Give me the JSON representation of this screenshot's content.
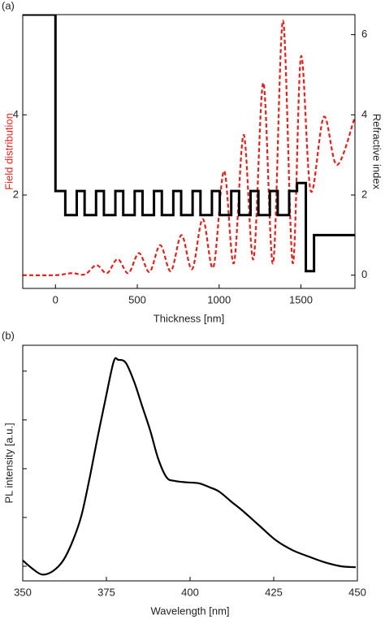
{
  "chart_data": [
    {
      "type": "line",
      "panel": "(a)",
      "xlabel": "Thickness [nm]",
      "ylabel": "Field distribution",
      "y2label": "Refractive index",
      "xlim": [
        -200,
        1830
      ],
      "xticks": [
        0,
        500,
        1000,
        1500
      ],
      "ylim": [
        -0.33,
        6.5
      ],
      "yticks": [
        2,
        4
      ],
      "y2lim": [
        -0.33,
        6.5
      ],
      "y2ticks": [
        0,
        2,
        4,
        6
      ],
      "ylabel_color": "#e3211c",
      "series": [
        {
          "color": "#e3211c",
          "dashed": true,
          "axis": "y",
          "x": [
            -200,
            0,
            100,
            180,
            250,
            315,
            380,
            445,
            510,
            575,
            640,
            705,
            770,
            835,
            900,
            965,
            1030,
            1090,
            1150,
            1210,
            1270,
            1330,
            1390,
            1450,
            1500,
            1560,
            1640,
            1720,
            1830
          ],
          "values": [
            0,
            0,
            0.05,
            0.02,
            0.25,
            0.05,
            0.4,
            0.05,
            0.55,
            0.08,
            0.75,
            0.1,
            1.0,
            0.15,
            1.4,
            0.2,
            2.6,
            0.3,
            3.5,
            0.4,
            4.8,
            0.3,
            6.35,
            0.3,
            5.45,
            2.1,
            3.95,
            2.75,
            3.95
          ]
        },
        {
          "color": "#000000",
          "dashed": false,
          "step": true,
          "axis": "y2",
          "x": [
            -200,
            0,
            0,
            60,
            60,
            130,
            130,
            178,
            178,
            248,
            248,
            296,
            296,
            366,
            366,
            414,
            414,
            484,
            484,
            532,
            532,
            602,
            602,
            650,
            650,
            720,
            720,
            768,
            768,
            838,
            838,
            886,
            886,
            956,
            956,
            1004,
            1004,
            1074,
            1074,
            1122,
            1122,
            1192,
            1192,
            1240,
            1240,
            1310,
            1310,
            1358,
            1358,
            1428,
            1428,
            1476,
            1476,
            1530,
            1530,
            1580,
            1580,
            1830
          ],
          "values": [
            6.5,
            6.5,
            2.1,
            2.1,
            1.5,
            1.5,
            2.1,
            2.1,
            1.5,
            1.5,
            2.1,
            2.1,
            1.5,
            1.5,
            2.1,
            2.1,
            1.5,
            1.5,
            2.1,
            2.1,
            1.5,
            1.5,
            2.1,
            2.1,
            1.5,
            1.5,
            2.1,
            2.1,
            1.5,
            1.5,
            2.1,
            2.1,
            1.5,
            1.5,
            2.1,
            2.1,
            1.5,
            1.5,
            2.1,
            2.1,
            1.5,
            1.5,
            2.1,
            2.1,
            1.5,
            1.5,
            2.1,
            2.1,
            1.5,
            1.5,
            2.1,
            2.1,
            2.3,
            2.3,
            0.1,
            0.1,
            1.0,
            1.0
          ]
        }
      ]
    },
    {
      "type": "line",
      "panel": "(b)",
      "xlabel": "Wavelength [nm]",
      "ylabel": "PL intensity [a.u.]",
      "xlim": [
        350,
        450
      ],
      "xticks": [
        350,
        375,
        400,
        425,
        450
      ],
      "ylim": [
        0.7,
        5.53
      ],
      "yticks": [
        1,
        2,
        3,
        4,
        5
      ],
      "show_ytick_labels": false,
      "series": [
        {
          "color": "#000000",
          "dashed": false,
          "axis": "y",
          "x": [
            350,
            352.9,
            355.8,
            359,
            362.1,
            365,
            367.5,
            369.9,
            372.3,
            374.8,
            377.2,
            378.6,
            380.8,
            383.3,
            385.7,
            388.1,
            390.5,
            393,
            395.4,
            399,
            402.7,
            405.8,
            408.7,
            412.4,
            416,
            420.9,
            425.7,
            430.6,
            435.4,
            440.3,
            445.1,
            449.5
          ],
          "values": [
            1.12,
            0.95,
            0.83,
            0.9,
            1.12,
            1.53,
            2.03,
            2.78,
            3.62,
            4.45,
            5.2,
            5.23,
            5.17,
            4.78,
            4.28,
            3.78,
            3.2,
            2.82,
            2.75,
            2.72,
            2.7,
            2.62,
            2.53,
            2.32,
            2.12,
            1.82,
            1.53,
            1.33,
            1.2,
            1.08,
            1.0,
            0.98
          ]
        }
      ]
    }
  ]
}
